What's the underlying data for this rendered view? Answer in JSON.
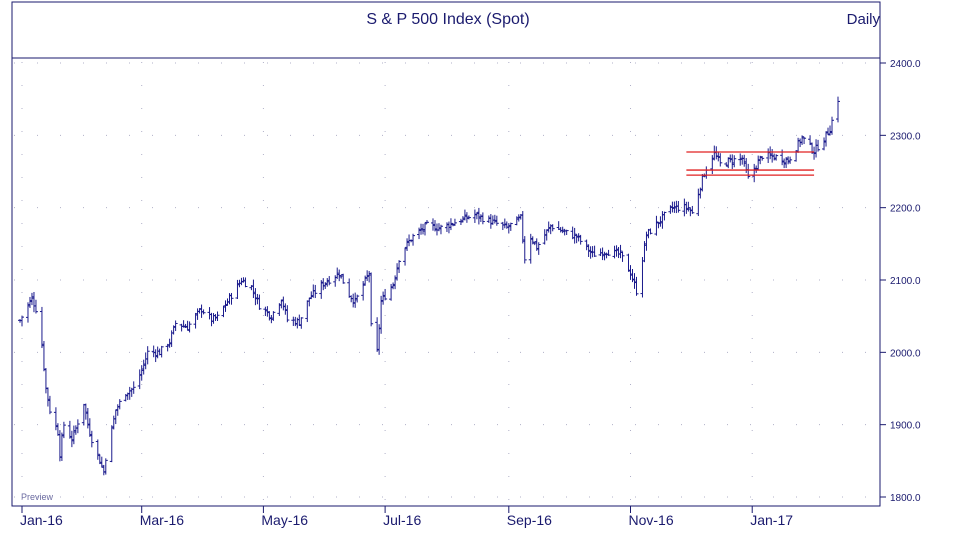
{
  "header": {
    "title": "S & P 500 Index  (Spot)",
    "period": "Daily"
  },
  "watermark": "Preview",
  "colors": {
    "frame": "#1a1a6e",
    "bars": "#1a1a8c",
    "text": "#1a1a6e",
    "channel": "#e02020",
    "grid": "#b0b0c8"
  },
  "chart_data": {
    "type": "ohlc",
    "title": "S & P 500 Index  (Spot)",
    "frequency": "Daily",
    "xlabel": "",
    "ylabel": "",
    "x_range": [
      "2015-12-31",
      "2017-02-13"
    ],
    "ylim": [
      1790,
      2420
    ],
    "y_ticks": [
      "2400.0",
      "2300.0",
      "2200.0",
      "2100.0",
      "2000.0",
      "1900.0",
      "1800.0"
    ],
    "x_ticks": [
      "Jan-16",
      "Mar-16",
      "May-16",
      "Jul-16",
      "Sep-16",
      "Nov-16",
      "Jan-17"
    ],
    "x_tick_dates": [
      "2016-01-01",
      "2016-03-01",
      "2016-05-01",
      "2016-07-01",
      "2016-09-01",
      "2016-11-01",
      "2017-01-01"
    ],
    "grid": true,
    "price_path": [
      [
        "2015-12-31",
        2044
      ],
      [
        "2016-01-04",
        2065
      ],
      [
        "2016-01-06",
        2075
      ],
      [
        "2016-01-08",
        2060
      ],
      [
        "2016-01-11",
        2010
      ],
      [
        "2016-01-13",
        1950
      ],
      [
        "2016-01-15",
        1920
      ],
      [
        "2016-01-19",
        1890
      ],
      [
        "2016-01-20",
        1860
      ],
      [
        "2016-01-22",
        1900
      ],
      [
        "2016-01-26",
        1880
      ],
      [
        "2016-01-28",
        1895
      ],
      [
        "2016-02-01",
        1930
      ],
      [
        "2016-02-03",
        1900
      ],
      [
        "2016-02-05",
        1880
      ],
      [
        "2016-02-09",
        1850
      ],
      [
        "2016-02-11",
        1835
      ],
      [
        "2016-02-12",
        1855
      ],
      [
        "2016-02-17",
        1920
      ],
      [
        "2016-02-22",
        1945
      ],
      [
        "2016-02-26",
        1950
      ],
      [
        "2016-03-01",
        1975
      ],
      [
        "2016-03-04",
        2000
      ],
      [
        "2016-03-10",
        2000
      ],
      [
        "2016-03-15",
        2015
      ],
      [
        "2016-03-18",
        2040
      ],
      [
        "2016-03-24",
        2035
      ],
      [
        "2016-03-31",
        2060
      ],
      [
        "2016-04-05",
        2045
      ],
      [
        "2016-04-08",
        2048
      ],
      [
        "2016-04-14",
        2075
      ],
      [
        "2016-04-20",
        2100
      ],
      [
        "2016-04-25",
        2090
      ],
      [
        "2016-04-29",
        2065
      ],
      [
        "2016-05-05",
        2050
      ],
      [
        "2016-05-10",
        2075
      ],
      [
        "2016-05-13",
        2045
      ],
      [
        "2016-05-19",
        2042
      ],
      [
        "2016-05-24",
        2075
      ],
      [
        "2016-05-31",
        2095
      ],
      [
        "2016-06-08",
        2110
      ],
      [
        "2016-06-13",
        2080
      ],
      [
        "2016-06-16",
        2070
      ],
      [
        "2016-06-23",
        2110
      ],
      [
        "2016-06-24",
        2035
      ],
      [
        "2016-06-27",
        2000
      ],
      [
        "2016-06-29",
        2070
      ],
      [
        "2016-07-05",
        2095
      ],
      [
        "2016-07-08",
        2130
      ],
      [
        "2016-07-12",
        2150
      ],
      [
        "2016-07-15",
        2160
      ],
      [
        "2016-07-22",
        2175
      ],
      [
        "2016-07-29",
        2172
      ],
      [
        "2016-08-05",
        2180
      ],
      [
        "2016-08-15",
        2190
      ],
      [
        "2016-08-24",
        2180
      ],
      [
        "2016-08-31",
        2172
      ],
      [
        "2016-09-07",
        2185
      ],
      [
        "2016-09-09",
        2130
      ],
      [
        "2016-09-12",
        2160
      ],
      [
        "2016-09-15",
        2145
      ],
      [
        "2016-09-22",
        2175
      ],
      [
        "2016-09-30",
        2165
      ],
      [
        "2016-10-05",
        2160
      ],
      [
        "2016-10-13",
        2135
      ],
      [
        "2016-10-20",
        2140
      ],
      [
        "2016-10-27",
        2135
      ],
      [
        "2016-11-01",
        2110
      ],
      [
        "2016-11-04",
        2085
      ],
      [
        "2016-11-07",
        2130
      ],
      [
        "2016-11-09",
        2162
      ],
      [
        "2016-11-15",
        2180
      ],
      [
        "2016-11-22",
        2200
      ],
      [
        "2016-11-30",
        2200
      ],
      [
        "2016-12-02",
        2192
      ],
      [
        "2016-12-07",
        2240
      ],
      [
        "2016-12-09",
        2255
      ],
      [
        "2016-12-13",
        2275
      ],
      [
        "2016-12-16",
        2260
      ],
      [
        "2016-12-21",
        2265
      ],
      [
        "2016-12-27",
        2268
      ],
      [
        "2016-12-30",
        2240
      ],
      [
        "2017-01-06",
        2272
      ],
      [
        "2017-01-13",
        2270
      ],
      [
        "2017-01-19",
        2265
      ],
      [
        "2017-01-26",
        2297
      ],
      [
        "2017-02-01",
        2278
      ],
      [
        "2017-02-06",
        2295
      ],
      [
        "2017-02-09",
        2310
      ],
      [
        "2017-02-13",
        2350
      ]
    ],
    "annotations": [
      {
        "type": "horizontal_segment",
        "label": "channel top",
        "x_from": "2016-11-29",
        "x_to": "2017-02-01",
        "y": 2277
      },
      {
        "type": "horizontal_segment",
        "label": "channel middle",
        "x_from": "2016-11-29",
        "x_to": "2017-02-01",
        "y": 2252
      },
      {
        "type": "horizontal_segment",
        "label": "channel bottom",
        "x_from": "2016-11-29",
        "x_to": "2017-02-01",
        "y": 2245
      }
    ]
  }
}
